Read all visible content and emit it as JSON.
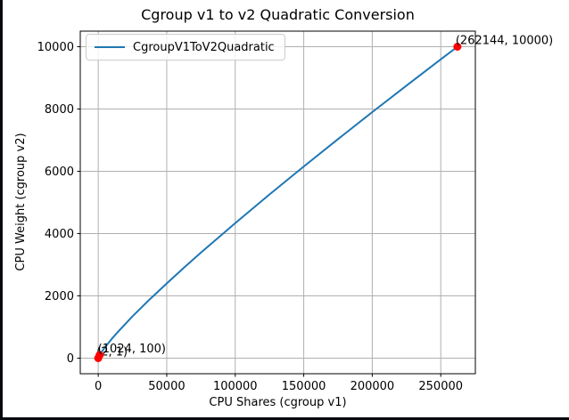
{
  "window": {
    "background": "#ffffff",
    "frame_color": "#07070f"
  },
  "chart_data": {
    "type": "line",
    "title": "Cgroup v1 to v2 Quadratic Conversion",
    "xlabel": "CPU Shares (cgroup v1)",
    "ylabel": "CPU Weight (cgroup v2)",
    "xlim": [
      -13107,
      275251
    ],
    "ylim": [
      -499,
      10500
    ],
    "x_ticks": [
      0,
      50000,
      100000,
      150000,
      200000,
      250000
    ],
    "y_ticks": [
      0,
      2000,
      4000,
      6000,
      8000,
      10000
    ],
    "grid": true,
    "grid_color": "#b0b0b0",
    "axes_edge_color": "#000000",
    "text_color": "#000000",
    "legend": {
      "position": "upper-left",
      "entries": [
        {
          "label": "CgroupV1ToV2Quadratic",
          "color": "#1f77b4"
        }
      ]
    },
    "series": [
      {
        "name": "CgroupV1ToV2Quadratic",
        "color": "#1f77b4",
        "x": [
          2,
          512,
          1024,
          2500,
          5000,
          10000,
          15000,
          25000,
          37500,
          50000,
          62500,
          75000,
          100000,
          125000,
          150000,
          175000,
          200000,
          225000,
          250000,
          262144
        ],
        "y": [
          1,
          58,
          100,
          203,
          355,
          626,
          875,
          1340,
          1883,
          2401,
          2903,
          3392,
          4339,
          5258,
          6156,
          7034,
          7901,
          8753,
          9594,
          10000
        ]
      }
    ],
    "annotated_points": [
      {
        "x": 2,
        "y": 1,
        "label": "(2, 1)",
        "color": "#ff0000"
      },
      {
        "x": 1024,
        "y": 100,
        "label": "(1024, 100)",
        "color": "#ff0000"
      },
      {
        "x": 262144,
        "y": 10000,
        "label": "(262144, 10000)",
        "color": "#ff0000"
      }
    ]
  }
}
